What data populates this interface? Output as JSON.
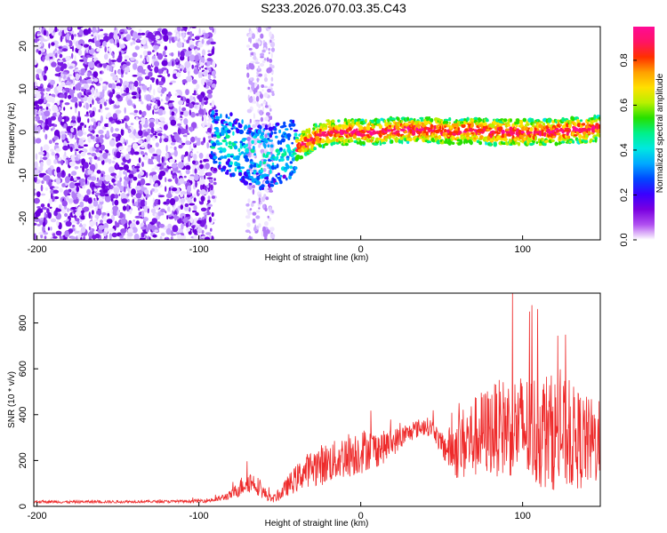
{
  "title": "S233.2026.070.03.35.C43",
  "chart_data": [
    {
      "type": "heatmap",
      "xlabel": "Height of straight line (km)",
      "ylabel": "Frequency (Hz)",
      "xlim": [
        -202,
        148
      ],
      "ylim": [
        -25,
        24.5
      ],
      "x_ticks": [
        -200,
        -100,
        0,
        100
      ],
      "y_ticks": [
        -20,
        -10,
        0,
        10,
        20
      ],
      "colorbar": {
        "label": "Normalized spectral amplitude",
        "range": [
          0,
          0.95
        ],
        "ticks": [
          "0.0",
          "0.2",
          "0.4",
          "0.6",
          "0.8"
        ],
        "tick_values": [
          0,
          0.2,
          0.4,
          0.6,
          0.8
        ],
        "colors": [
          "#ffffff",
          "#b04ff0",
          "#7a00e0",
          "#3a00ff",
          "#0048ff",
          "#00a8ff",
          "#00e8e0",
          "#00f08a",
          "#26e000",
          "#b8f000",
          "#ffe000",
          "#ffa000",
          "#ff3000",
          "#ff1464",
          "#ff0a96"
        ]
      },
      "ridge": {
        "x": [
          -90,
          -80,
          -70,
          -60,
          -50,
          -40,
          -30,
          -20,
          -10,
          0,
          10,
          20,
          30,
          40,
          50,
          60,
          70,
          80,
          90,
          100,
          110,
          120,
          130,
          140,
          148
        ],
        "frequency": [
          -1.5,
          -3,
          -5,
          -6,
          -5,
          -4,
          -1.5,
          0,
          0,
          0,
          0,
          0.5,
          0.5,
          0.5,
          0.3,
          0,
          0.5,
          0,
          0,
          0,
          0,
          0,
          0.5,
          0.5,
          1
        ]
      }
    },
    {
      "type": "line",
      "xlabel": "Height of straight line (km)",
      "ylabel": "SNR (10 * v/v)",
      "xlim": [
        -202,
        148
      ],
      "ylim": [
        0,
        930
      ],
      "x_ticks": [
        -200,
        -100,
        0,
        100
      ],
      "y_ticks": [
        0,
        200,
        400,
        600,
        800
      ],
      "series": [
        {
          "color": "#ee2b2b",
          "x": [
            -202,
            -190,
            -180,
            -170,
            -160,
            -150,
            -140,
            -130,
            -120,
            -110,
            -100,
            -90,
            -80,
            -75,
            -70,
            -65,
            -60,
            -55,
            -50,
            -45,
            -40,
            -35,
            -30,
            -25,
            -20,
            -15,
            -10,
            -5,
            0,
            5,
            10,
            15,
            20,
            25,
            30,
            35,
            40,
            45,
            50,
            55,
            60,
            65,
            70,
            75,
            80,
            85,
            90,
            95,
            100,
            105,
            110,
            115,
            120,
            125,
            130,
            135,
            140,
            145,
            148
          ],
          "y": [
            20,
            20,
            19,
            20,
            20,
            20,
            21,
            21,
            21,
            22,
            24,
            28,
            50,
            80,
            110,
            100,
            60,
            30,
            50,
            90,
            120,
            150,
            170,
            180,
            190,
            200,
            220,
            230,
            240,
            250,
            250,
            260,
            280,
            300,
            320,
            340,
            350,
            340,
            260,
            250,
            260,
            280,
            300,
            320,
            330,
            340,
            350,
            350,
            340,
            330,
            330,
            330,
            320,
            310,
            300,
            290,
            280,
            280,
            280
          ],
          "spread": [
            6,
            6,
            6,
            6,
            6,
            6,
            6,
            6,
            6,
            6,
            8,
            10,
            20,
            40,
            50,
            45,
            30,
            15,
            25,
            45,
            60,
            70,
            80,
            90,
            90,
            90,
            100,
            100,
            100,
            90,
            80,
            70,
            60,
            50,
            40,
            40,
            40,
            40,
            50,
            100,
            150,
            170,
            180,
            190,
            200,
            210,
            220,
            230,
            240,
            250,
            260,
            260,
            250,
            250,
            230,
            220,
            200,
            190,
            180
          ]
        }
      ]
    }
  ]
}
